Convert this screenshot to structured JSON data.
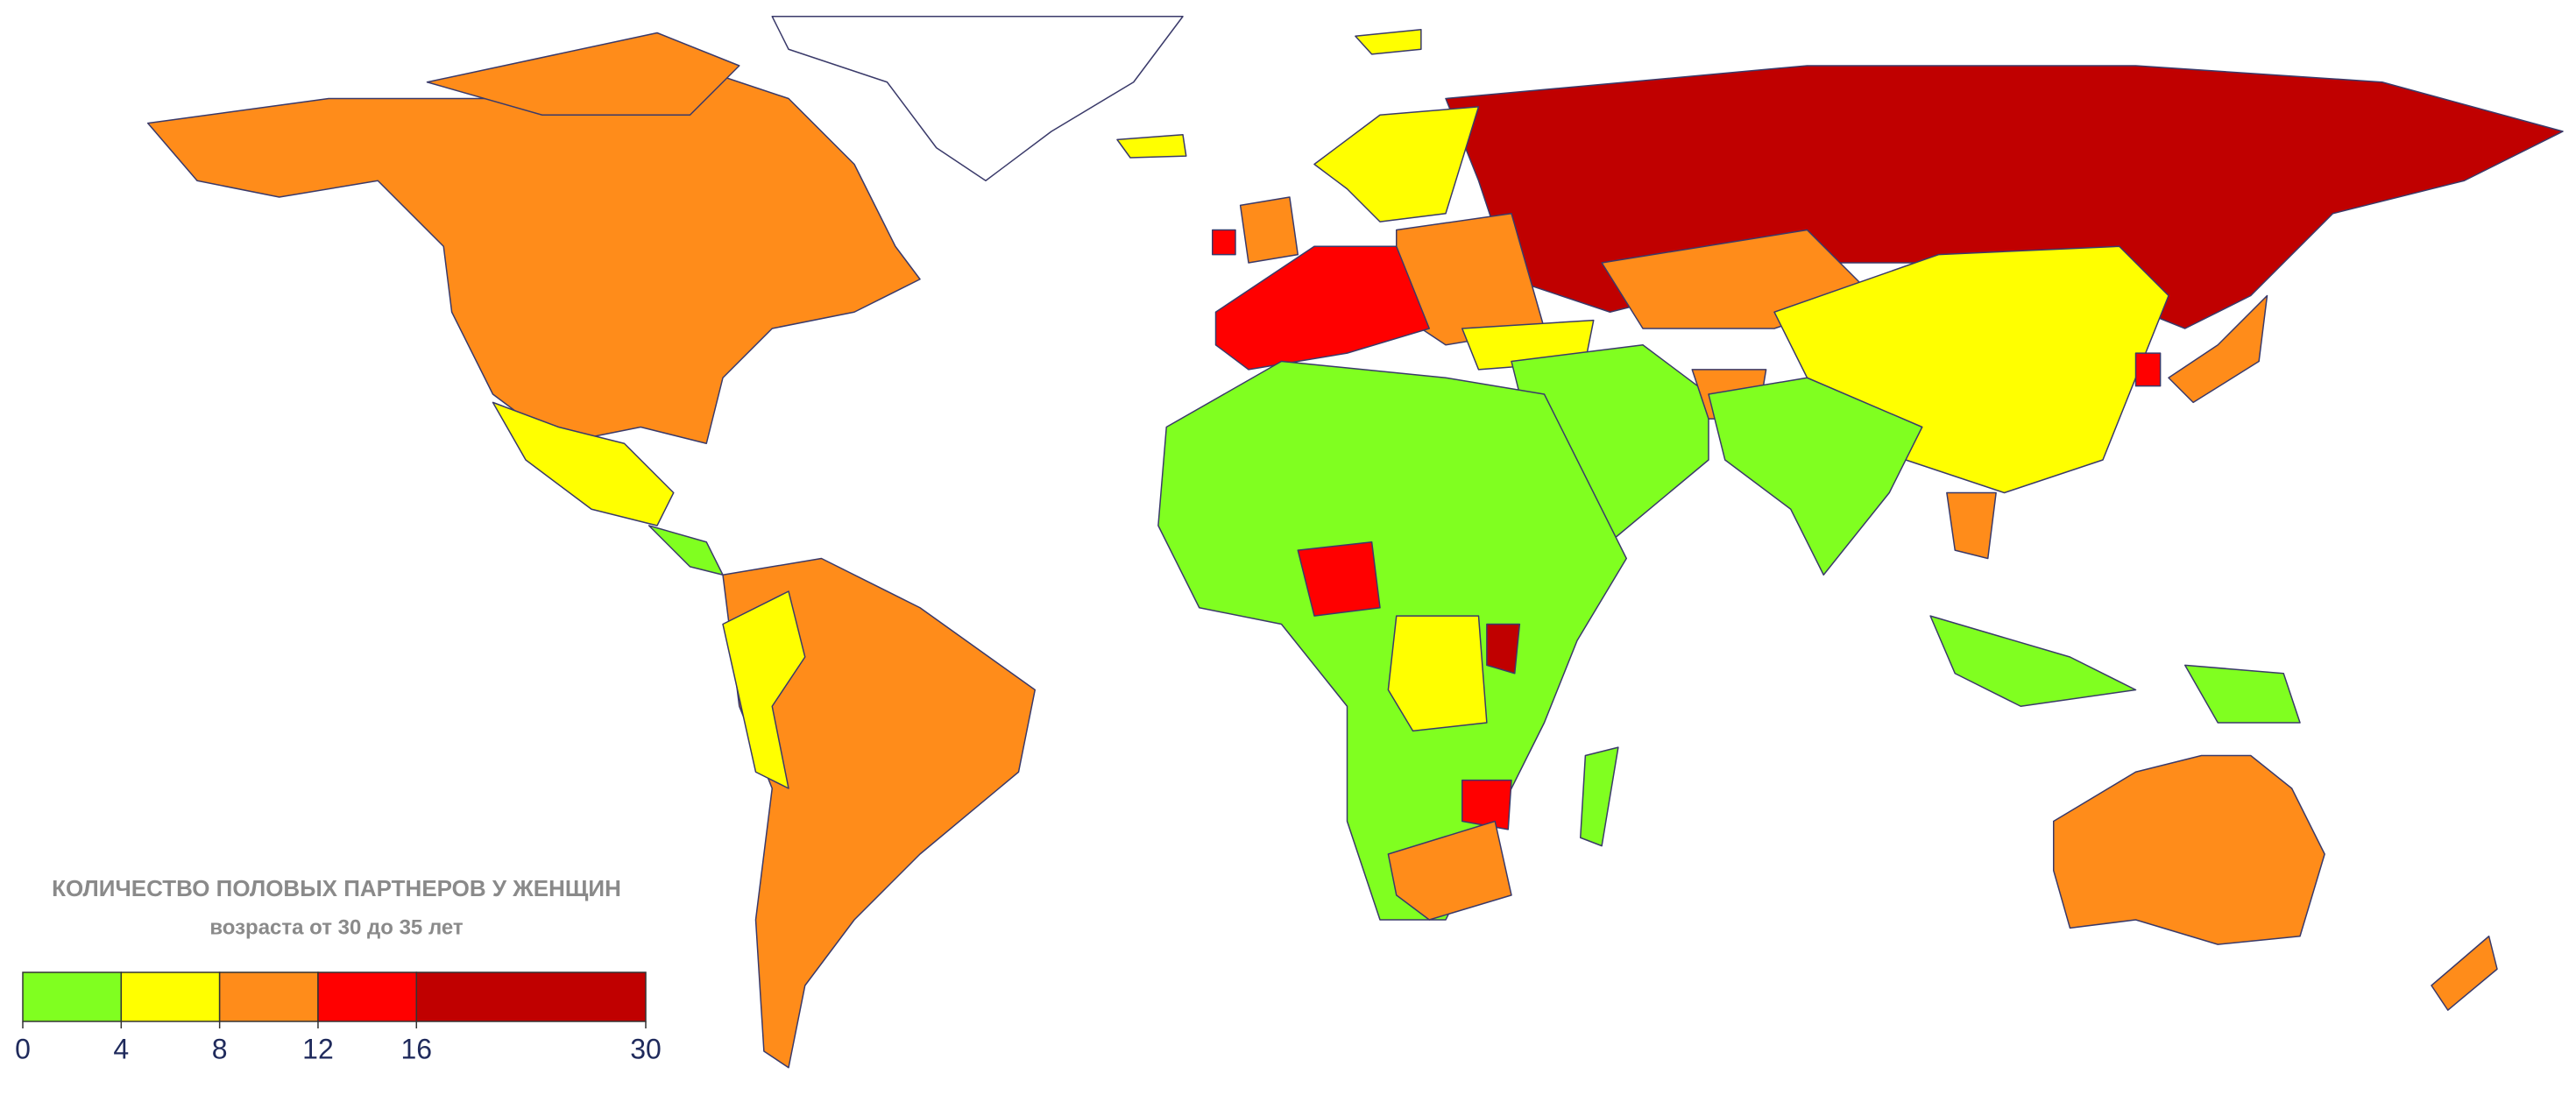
{
  "legend": {
    "title": "КОЛИЧЕСТВО ПОЛОВЫХ ПАРТНЕРОВ У ЖЕНЩИН",
    "subtitle": "возраста от 30 до 35 лет",
    "ticks": [
      0,
      4,
      8,
      12,
      16,
      30
    ],
    "colors": [
      "#80ff20",
      "#ffff00",
      "#ff8c1a",
      "#ff0000",
      "#c00000"
    ]
  }
}
